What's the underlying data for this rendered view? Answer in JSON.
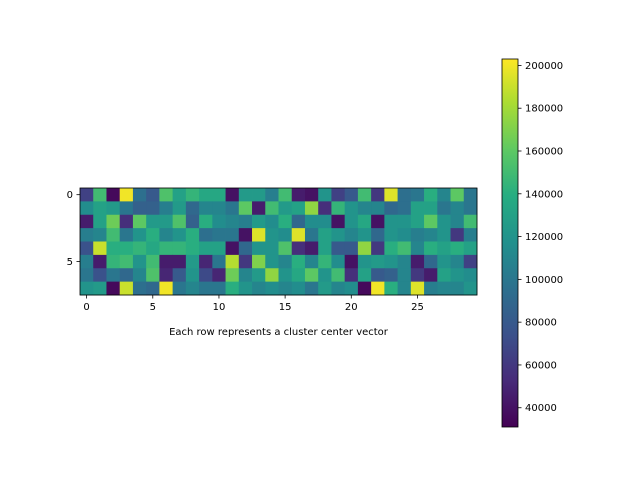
{
  "chart_data": {
    "type": "heatmap",
    "title": "",
    "xlabel": "Each row represents a cluster center vector",
    "ylabel": "",
    "n_rows": 8,
    "n_cols": 30,
    "x_ticks": [
      0,
      5,
      10,
      15,
      20,
      25
    ],
    "y_ticks": [
      0,
      5
    ],
    "colormap": "viridis",
    "vmin": 31000,
    "vmax": 203000,
    "colorbar_ticks": [
      40000,
      60000,
      80000,
      100000,
      120000,
      140000,
      160000,
      180000,
      200000
    ],
    "colorbar_tick_labels": [
      "40000",
      "60000",
      "80000",
      "100000",
      "120000",
      "140000",
      "160000",
      "180000",
      "200000"
    ],
    "values": [
      [
        65000,
        150000,
        35000,
        200000,
        95000,
        80000,
        155000,
        130000,
        145000,
        135000,
        135000,
        40000,
        125000,
        125000,
        105000,
        150000,
        45000,
        40000,
        120000,
        65000,
        80000,
        150000,
        60000,
        195000,
        95000,
        100000,
        140000,
        110000,
        160000,
        100000
      ],
      [
        115000,
        130000,
        125000,
        100000,
        85000,
        85000,
        105000,
        125000,
        90000,
        110000,
        110000,
        100000,
        160000,
        45000,
        150000,
        125000,
        130000,
        175000,
        55000,
        145000,
        120000,
        110000,
        110000,
        90000,
        95000,
        130000,
        130000,
        100000,
        110000,
        100000
      ],
      [
        45000,
        130000,
        165000,
        55000,
        160000,
        125000,
        125000,
        155000,
        85000,
        140000,
        115000,
        110000,
        105000,
        125000,
        115000,
        140000,
        90000,
        115000,
        115000,
        40000,
        120000,
        135000,
        40000,
        120000,
        120000,
        130000,
        160000,
        120000,
        110000,
        150000
      ],
      [
        105000,
        110000,
        150000,
        100000,
        120000,
        140000,
        110000,
        120000,
        140000,
        95000,
        100000,
        100000,
        40000,
        195000,
        120000,
        115000,
        195000,
        100000,
        130000,
        120000,
        110000,
        120000,
        90000,
        120000,
        115000,
        105000,
        110000,
        120000,
        60000,
        105000
      ],
      [
        75000,
        190000,
        140000,
        140000,
        145000,
        135000,
        145000,
        145000,
        140000,
        130000,
        130000,
        40000,
        90000,
        120000,
        120000,
        155000,
        55000,
        45000,
        130000,
        80000,
        80000,
        175000,
        60000,
        140000,
        150000,
        110000,
        140000,
        130000,
        140000,
        130000
      ],
      [
        105000,
        45000,
        145000,
        150000,
        120000,
        150000,
        45000,
        45000,
        125000,
        50000,
        100000,
        185000,
        60000,
        170000,
        120000,
        110000,
        140000,
        110000,
        145000,
        115000,
        40000,
        120000,
        125000,
        120000,
        110000,
        45000,
        90000,
        120000,
        110000,
        65000
      ],
      [
        100000,
        75000,
        100000,
        90000,
        110000,
        155000,
        50000,
        80000,
        120000,
        70000,
        50000,
        165000,
        110000,
        125000,
        175000,
        120000,
        135000,
        160000,
        120000,
        150000,
        55000,
        130000,
        80000,
        85000,
        110000,
        60000,
        45000,
        130000,
        120000,
        115000
      ],
      [
        120000,
        125000,
        35000,
        190000,
        95000,
        90000,
        200000,
        100000,
        110000,
        100000,
        100000,
        140000,
        120000,
        110000,
        115000,
        110000,
        115000,
        100000,
        125000,
        110000,
        115000,
        35000,
        200000,
        140000,
        110000,
        195000,
        105000,
        110000,
        110000,
        120000
      ]
    ]
  }
}
